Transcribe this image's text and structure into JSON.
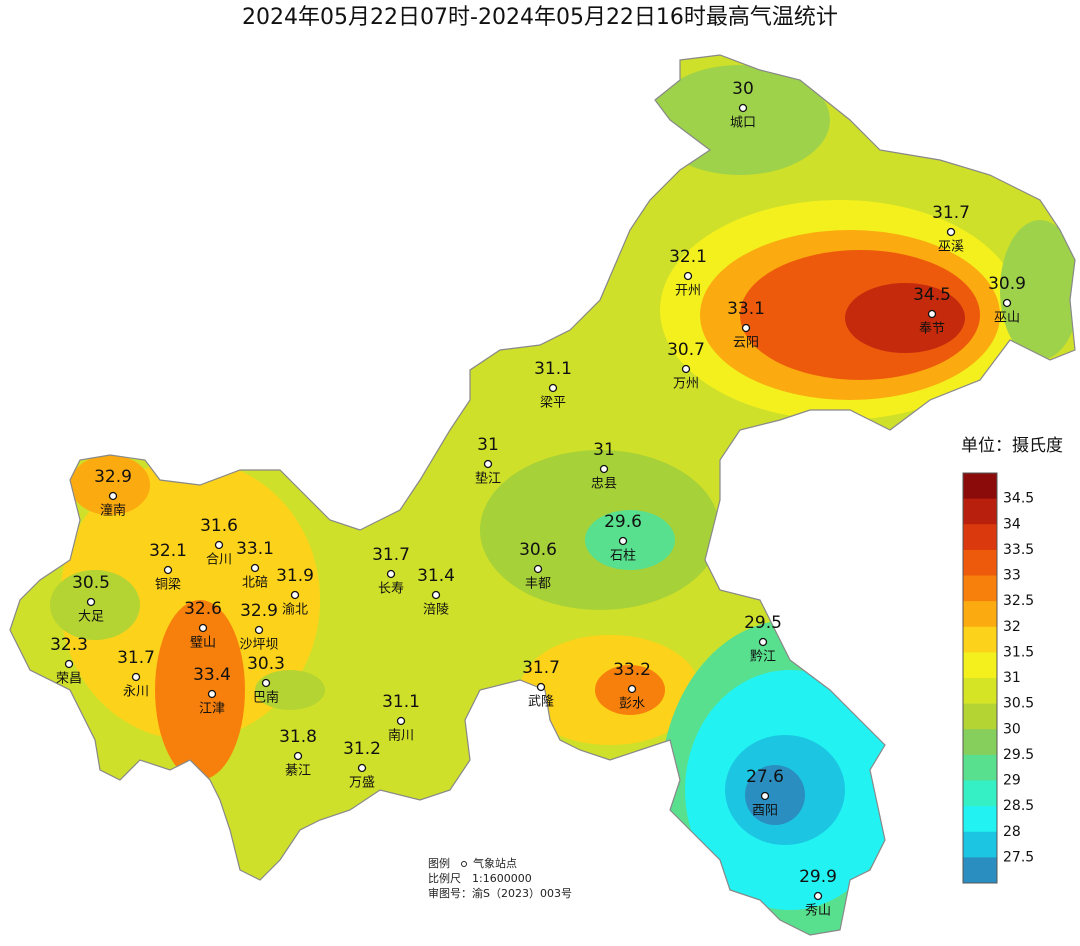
{
  "title": "2024年05月22日07时-2024年05月22日16时最高气温统计",
  "stations": [
    {
      "name": "城口",
      "value": 30
    },
    {
      "name": "巫溪",
      "value": 31.7
    },
    {
      "name": "开州",
      "value": 32.1
    },
    {
      "name": "奉节",
      "value": 34.5
    },
    {
      "name": "巫山",
      "value": 30.9
    },
    {
      "name": "云阳",
      "value": 33.1
    },
    {
      "name": "万州",
      "value": 30.7
    },
    {
      "name": "梁平",
      "value": 31.1
    },
    {
      "name": "垫江",
      "value": 31
    },
    {
      "name": "忠县",
      "value": 31
    },
    {
      "name": "潼南",
      "value": 32.9
    },
    {
      "name": "合川",
      "value": 31.6
    },
    {
      "name": "石柱",
      "value": 29.6
    },
    {
      "name": "铜梁",
      "value": 32.1
    },
    {
      "name": "北碚",
      "value": 33.1
    },
    {
      "name": "渝北",
      "value": 31.9
    },
    {
      "name": "长寿",
      "value": 31.7
    },
    {
      "name": "涪陵",
      "value": 31.4
    },
    {
      "name": "丰都",
      "value": 30.6
    },
    {
      "name": "大足",
      "value": 30.5
    },
    {
      "name": "璧山",
      "value": 32.6
    },
    {
      "name": "沙坪坝",
      "value": 32.9
    },
    {
      "name": "黔江",
      "value": 29.5
    },
    {
      "name": "荣昌",
      "value": 32.3
    },
    {
      "name": "永川",
      "value": 31.7
    },
    {
      "name": "巴南",
      "value": 30.3
    },
    {
      "name": "江津",
      "value": 33.4
    },
    {
      "name": "武隆",
      "value": 31.7
    },
    {
      "name": "彭水",
      "value": 33.2
    },
    {
      "name": "南川",
      "value": 31.1
    },
    {
      "name": "綦江",
      "value": 31.8
    },
    {
      "name": "万盛",
      "value": 31.2
    },
    {
      "name": "酉阳",
      "value": 27.6
    },
    {
      "name": "秀山",
      "value": 29.9
    }
  ],
  "legend": {
    "title": "单位：摄氏度",
    "ticks": [
      34.5,
      34,
      33.5,
      33,
      32.5,
      32,
      31.5,
      31,
      30.5,
      30,
      29.5,
      29,
      28.5,
      28,
      27.5
    ],
    "colors": [
      "#8b0a0a",
      "#b81f0c",
      "#d9390c",
      "#ee5a0c",
      "#f7800c",
      "#fbaa10",
      "#fdd21a",
      "#f3f01e",
      "#d6e426",
      "#b3d432",
      "#86cf5c",
      "#58e08e",
      "#35f0c4",
      "#22f2f2",
      "#1cc6e2",
      "#2a8fc0"
    ]
  },
  "footer": {
    "legend_label": "图例",
    "legend_item": "气象站点",
    "scale": "比例尺　1:1600000",
    "approval": "审图号：渝S（2023）003号"
  }
}
